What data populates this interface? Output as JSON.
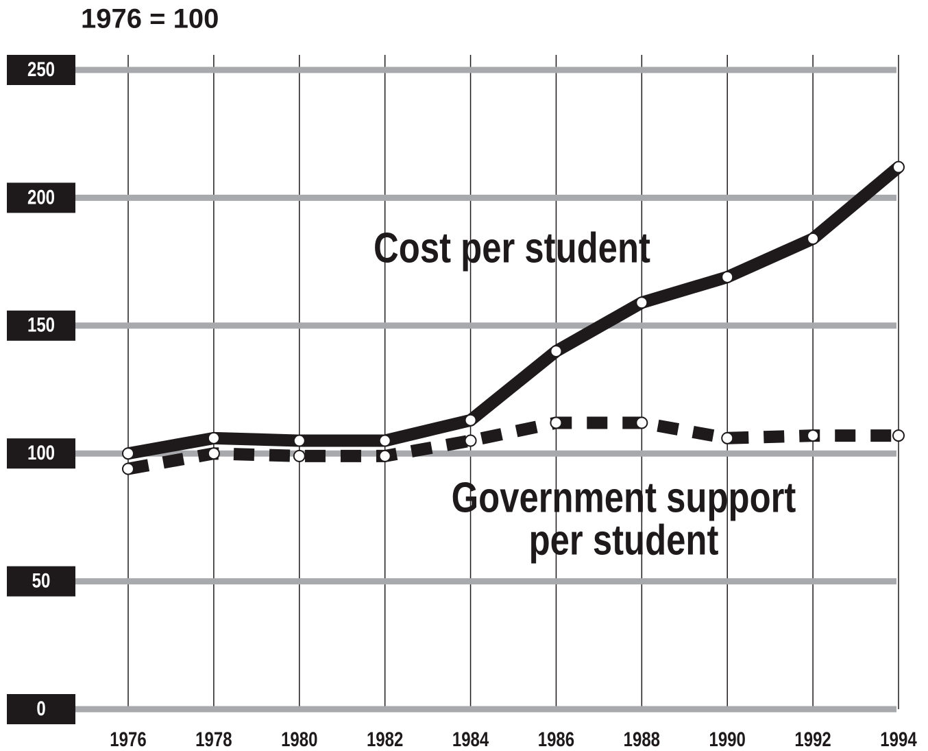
{
  "chart_data": {
    "type": "line",
    "subtitle": "1976 = 100",
    "x": [
      1976,
      1978,
      1980,
      1982,
      1984,
      1986,
      1988,
      1990,
      1992,
      1994
    ],
    "xlim": [
      1976,
      1994
    ],
    "xticks": [
      1976,
      1978,
      1980,
      1982,
      1984,
      1986,
      1988,
      1990,
      1992,
      1994
    ],
    "ylim": [
      0,
      250
    ],
    "yticks": [
      0,
      50,
      100,
      150,
      200,
      250
    ],
    "grid": true,
    "series": [
      {
        "name": "Cost per student",
        "color": "#1e1a1b",
        "dashed": false,
        "values": [
          100,
          106,
          105,
          105,
          113,
          140,
          159,
          169,
          184,
          212
        ]
      },
      {
        "name": "Government support per student",
        "color": "#1e1a1b",
        "dashed": true,
        "values": [
          94,
          100,
          99,
          99,
          105,
          112,
          112,
          106,
          107,
          107
        ]
      }
    ],
    "annotations": [
      {
        "lines": [
          "Cost per student"
        ]
      },
      {
        "lines": [
          "Government support",
          "per student"
        ]
      }
    ]
  }
}
